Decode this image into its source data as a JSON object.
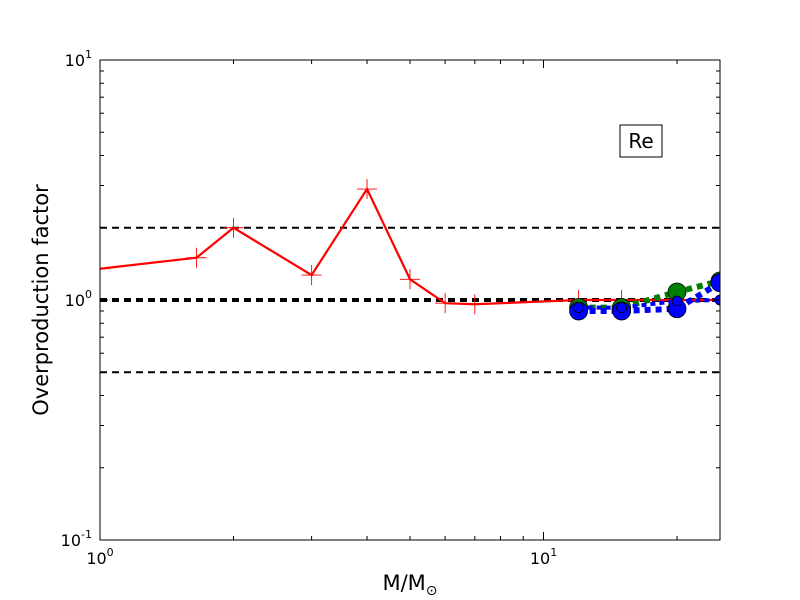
{
  "chart_data": {
    "type": "line",
    "title": "",
    "xlabel": "M/M",
    "xlabel_sub": "⊙",
    "ylabel": "Overproduction factor",
    "xscale": "log",
    "yscale": "log",
    "xlim": [
      1,
      25
    ],
    "ylim": [
      0.1,
      10
    ],
    "grid": false,
    "x_ticks": [
      {
        "value": 1,
        "base": "10",
        "exp": "0"
      },
      {
        "value": 10,
        "base": "10",
        "exp": "1"
      }
    ],
    "y_ticks": [
      {
        "value": 0.1,
        "base": "10",
        "exp": "-1"
      },
      {
        "value": 1,
        "base": "10",
        "exp": "0"
      },
      {
        "value": 10,
        "base": "10",
        "exp": "1"
      }
    ],
    "annotation": {
      "text": "Re"
    },
    "reference_lines": [
      {
        "y": 2.0,
        "style": "dashed-thin",
        "color": "#000000"
      },
      {
        "y": 1.0,
        "style": "dashed-thick",
        "color": "#000000"
      },
      {
        "y": 0.5,
        "style": "dashed-thin",
        "color": "#000000"
      }
    ],
    "series": [
      {
        "style": "solid-plus",
        "color": "#ff0000",
        "x": [
          1.0,
          1.65,
          2.0,
          3.0,
          4.0,
          5.0,
          6.0,
          7.0,
          12.0,
          15.0,
          20.0,
          25.0
        ],
        "y": [
          1.35,
          1.5,
          2.0,
          1.27,
          2.9,
          1.22,
          0.97,
          0.96,
          1.0,
          1.0,
          1.0,
          1.0
        ]
      },
      {
        "style": "dotted-circle",
        "color": "#008000",
        "x": [
          12.0,
          15.0,
          20.0,
          25.0
        ],
        "y": [
          0.93,
          0.93,
          1.08,
          1.2
        ]
      },
      {
        "style": "dotted-circle",
        "color": "#0000ff",
        "x": [
          12.0,
          15.0,
          20.0,
          25.0
        ],
        "y": [
          0.9,
          0.9,
          0.92,
          1.18
        ]
      },
      {
        "style": "dotted-circle-small",
        "color": "#0000ff",
        "x": [
          12.0,
          15.0,
          20.0,
          25.0
        ],
        "y": [
          0.93,
          0.93,
          0.99,
          1.0
        ]
      }
    ]
  }
}
